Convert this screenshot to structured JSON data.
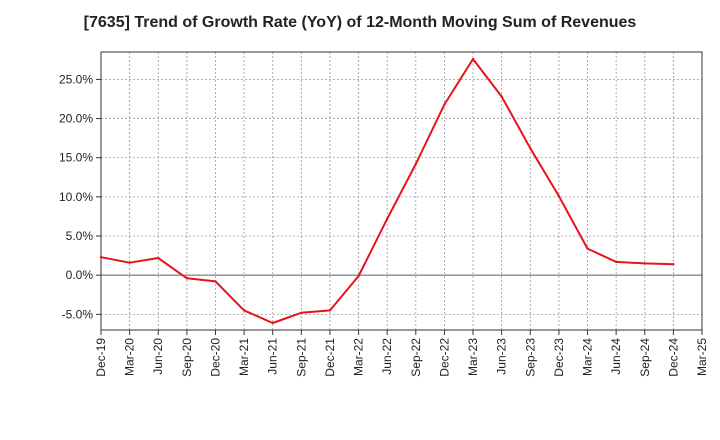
{
  "chart_data": {
    "type": "line",
    "title": "[7635]  Trend of Growth Rate (YoY) of 12-Month Moving Sum of Revenues",
    "xlabel": "",
    "ylabel": "",
    "x_tick_labels": [
      "Dec-19",
      "Mar-20",
      "Jun-20",
      "Sep-20",
      "Dec-20",
      "Mar-21",
      "Jun-21",
      "Sep-21",
      "Dec-21",
      "Mar-22",
      "Jun-22",
      "Sep-22",
      "Dec-22",
      "Mar-23",
      "Jun-23",
      "Sep-23",
      "Dec-23",
      "Mar-24",
      "Jun-24",
      "Sep-24",
      "Dec-24",
      "Mar-25"
    ],
    "y_ticks": [
      -5,
      0,
      5,
      10,
      15,
      20,
      25
    ],
    "y_tick_labels": [
      "-5.0%",
      "0.0%",
      "5.0%",
      "10.0%",
      "15.0%",
      "20.0%",
      "25.0%"
    ],
    "ylim": [
      -7.0,
      28.5
    ],
    "grid": true,
    "series": [
      {
        "color": "#e8141b",
        "x": [
          "Dec-19",
          "Mar-20",
          "Jun-20",
          "Sep-20",
          "Dec-20",
          "Mar-21",
          "Jun-21",
          "Sep-21",
          "Dec-21",
          "Mar-22",
          "Jun-22",
          "Sep-22",
          "Dec-22",
          "Mar-23",
          "Jun-23",
          "Sep-23",
          "Dec-23",
          "Mar-24",
          "Jun-24",
          "Sep-24",
          "Dec-24"
        ],
        "values": [
          2.3,
          1.6,
          2.2,
          -0.4,
          -0.8,
          -4.5,
          -6.1,
          -4.8,
          -4.5,
          -0.1,
          7.2,
          14.2,
          21.8,
          27.6,
          22.8,
          16.2,
          10.1,
          3.4,
          1.7,
          1.5,
          1.4
        ]
      }
    ]
  }
}
